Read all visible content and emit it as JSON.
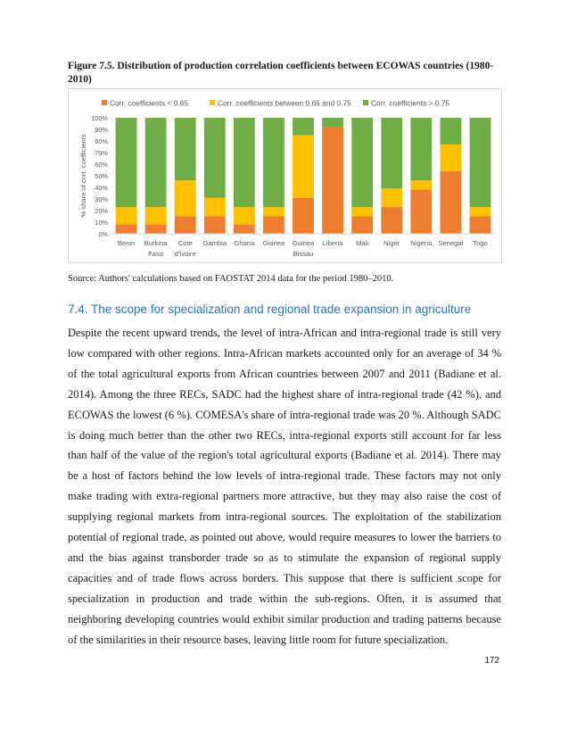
{
  "figure": {
    "title": "Figure 7.5. Distribution of production correlation coefficients between ECOWAS countries (1980-2010)",
    "source": "Source: Authors' calculations based on FAOSTAT 2014 data for the period 1980–2010."
  },
  "chart_data": {
    "type": "bar",
    "stacked": true,
    "title": "",
    "xlabel": "",
    "ylabel": "% share of corr. coefficients",
    "ylim": [
      0,
      100
    ],
    "yticks": [
      "0%",
      "10%",
      "20%",
      "30%",
      "40%",
      "50%",
      "60%",
      "70%",
      "80%",
      "90%",
      "100%"
    ],
    "legend_position": "top",
    "grid": false,
    "categories": [
      "Benin",
      "Burkina Faso",
      "Cote d'Ivoire",
      "Gambia",
      "Ghana",
      "Guinea",
      "Guinea Bissau",
      "Liberia",
      "Mali",
      "Niger",
      "Nigeria",
      "Senegal",
      "Togo"
    ],
    "category_lines": [
      [
        "Benin"
      ],
      [
        "Burkina",
        "Faso"
      ],
      [
        "Cote",
        "d'Ivoire"
      ],
      [
        "Gambia"
      ],
      [
        "Ghana"
      ],
      [
        "Guinea"
      ],
      [
        "Guinea",
        "Bissau"
      ],
      [
        "Liberia"
      ],
      [
        "Mali"
      ],
      [
        "Niger"
      ],
      [
        "Nigeria"
      ],
      [
        "Senegal"
      ],
      [
        "Togo"
      ]
    ],
    "series": [
      {
        "name": "Corr. coefficients < 0.65",
        "color": "#ed7d31",
        "values": [
          8,
          8,
          15,
          15,
          8,
          15,
          31,
          92,
          15,
          23,
          38,
          54,
          15
        ]
      },
      {
        "name": "Corr. coefficients between 0.65 and 0.75",
        "color": "#ffc000",
        "values": [
          15,
          15,
          31,
          16,
          15,
          8,
          54,
          0,
          8,
          16,
          8,
          23,
          8
        ]
      },
      {
        "name": "Corr. coefficients > 0.75",
        "color": "#70ad47",
        "values": [
          77,
          77,
          54,
          69,
          77,
          77,
          15,
          8,
          77,
          61,
          54,
          23,
          77
        ]
      }
    ]
  },
  "section": {
    "heading": "7.4. The scope for specialization and regional trade expansion in agriculture",
    "body": "Despite the recent upward trends, the level of intra-African and intra-regional trade is still very low compared with other regions. Intra-African markets accounted only for an average of 34 % of the total agricultural exports from African countries between 2007 and 2011 (Badiane et al. 2014). Among the three RECs, SADC had the highest share of intra-regional trade (42 %), and ECOWAS the lowest (6 %). COMESA's share of intra-regional trade was 20 %. Although SADC is doing much better than the other two RECs, intra-regional exports still account for far less than half of the value of the region's total agricultural exports (Badiane et al. 2014). There may be a host of factors behind the low levels of intra-regional trade. These factors may not only make trading with extra-regional partners more attractive, but they may also raise the cost of supplying regional markets from intra-regional sources. The exploitation of the stabilization potential of regional trade, as pointed out above, would require measures to lower the barriers to and the bias against transborder trade so as to stimulate the expansion of regional supply capacities and of trade flows across borders. This suppose that there is sufficient scope for specialization in production and trade within the sub-regions. Often, it is assumed that neighboring developing countries would exhibit similar production and trading patterns because of the similarities in their resource bases, leaving little room for future specialization."
  },
  "page_number": "172"
}
